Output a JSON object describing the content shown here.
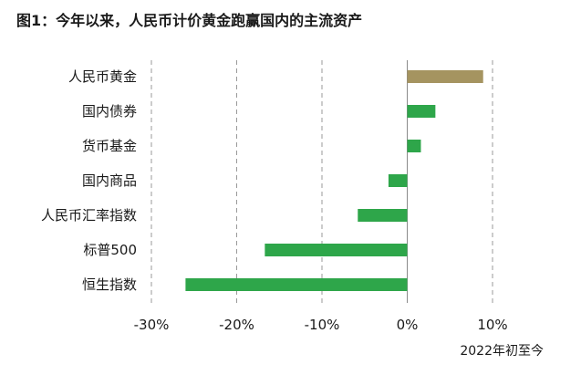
{
  "title": "图1：今年以来，人民币计价黄金跑赢国内的主流资产",
  "chart_data": {
    "type": "bar",
    "orientation": "horizontal",
    "categories": [
      "人民币黄金",
      "国内债券",
      "货币基金",
      "国内商品",
      "人民币汇率指数",
      "标普500",
      "恒生指数"
    ],
    "values": [
      8.9,
      3.3,
      1.6,
      -2.2,
      -5.8,
      -16.7,
      -26.0
    ],
    "xlim": [
      -30,
      10
    ],
    "ticks": [
      -30,
      -20,
      -10,
      0,
      10
    ],
    "tick_labels": [
      "-30%",
      "-20%",
      "-10%",
      "0%",
      "10%"
    ],
    "xlabel": "2022年初至今",
    "grid": "vertical-dashed",
    "colors": {
      "highlight": "#A59460",
      "default": "#2EA64A"
    },
    "highlight_index": 0
  }
}
